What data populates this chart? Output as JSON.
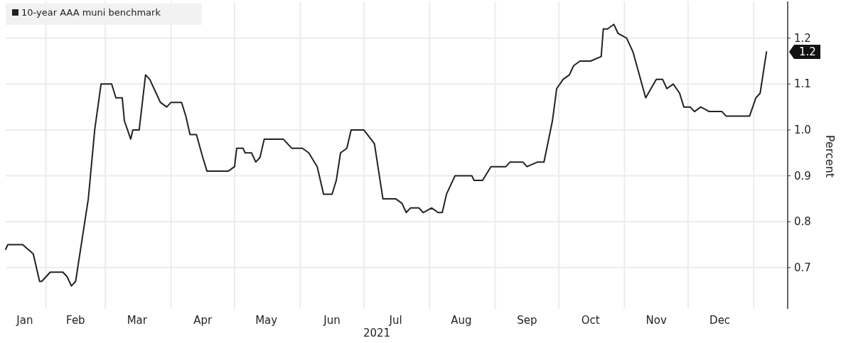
{
  "chart_data": {
    "type": "line",
    "xlabel": "2021",
    "ylabel": "Percent",
    "legend": "top left",
    "grid": true,
    "xlim": [
      "2021-01-13",
      "2022-01-17"
    ],
    "xticks": [
      {
        "value": "2021-01-22",
        "label": "Jan"
      },
      {
        "value": "2021-02-15",
        "label": "Feb"
      },
      {
        "value": "2021-03-16",
        "label": "Mar"
      },
      {
        "value": "2021-04-16",
        "label": "Apr"
      },
      {
        "value": "2021-05-16",
        "label": "May"
      },
      {
        "value": "2021-06-16",
        "label": "Jun"
      },
      {
        "value": "2021-07-16",
        "label": "Jul"
      },
      {
        "value": "2021-08-16",
        "label": "Aug"
      },
      {
        "value": "2021-09-16",
        "label": "Sep"
      },
      {
        "value": "2021-10-16",
        "label": "Oct"
      },
      {
        "value": "2021-11-16",
        "label": "Nov"
      },
      {
        "value": "2021-12-16",
        "label": "Dec"
      },
      {
        "value": "2021-02-01",
        "label": null
      },
      {
        "value": "2021-03-01",
        "label": null
      },
      {
        "value": "2021-04-01",
        "label": null
      },
      {
        "value": "2021-05-01",
        "label": null
      },
      {
        "value": "2021-06-01",
        "label": null
      },
      {
        "value": "2021-07-01",
        "label": null
      },
      {
        "value": "2021-08-01",
        "label": null
      },
      {
        "value": "2021-09-01",
        "label": null
      },
      {
        "value": "2021-10-01",
        "label": null
      },
      {
        "value": "2021-11-01",
        "label": null
      },
      {
        "value": "2021-12-01",
        "label": null
      },
      {
        "value": "2022-01-01",
        "label": null
      }
    ],
    "ylim": [
      0.61,
      1.28
    ],
    "yticks": [
      0.7,
      0.8,
      0.9,
      "1.0",
      1.1,
      1.2
    ],
    "annotations": [
      "1.2"
    ],
    "series": [
      {
        "name": "10-year AAA muni benchmark",
        "color": "#222222",
        "x": [
          "2021-01-13",
          "2021-01-14",
          "2021-01-21",
          "2021-01-26",
          "2021-01-29",
          "2021-01-30",
          "2021-02-01",
          "2021-02-03",
          "2021-02-09",
          "2021-02-11",
          "2021-02-13",
          "2021-02-15",
          "2021-02-17",
          "2021-02-21",
          "2021-02-24",
          "2021-02-27",
          "2021-03-04",
          "2021-03-06",
          "2021-03-09",
          "2021-03-10",
          "2021-03-13",
          "2021-03-14",
          "2021-03-17",
          "2021-03-20",
          "2021-03-22",
          "2021-03-25",
          "2021-03-27",
          "2021-03-30",
          "2021-04-01",
          "2021-04-03",
          "2021-04-06",
          "2021-04-08",
          "2021-04-10",
          "2021-04-13",
          "2021-04-16",
          "2021-04-18",
          "2021-04-28",
          "2021-05-01",
          "2021-05-02",
          "2021-05-05",
          "2021-05-06",
          "2021-05-09",
          "2021-05-11",
          "2021-05-13",
          "2021-05-15",
          "2021-05-24",
          "2021-05-28",
          "2021-06-02",
          "2021-06-05",
          "2021-06-09",
          "2021-06-12",
          "2021-06-16",
          "2021-06-18",
          "2021-06-20",
          "2021-06-23",
          "2021-06-25",
          "2021-06-28",
          "2021-07-01",
          "2021-07-06",
          "2021-07-10",
          "2021-07-13",
          "2021-07-16",
          "2021-07-19",
          "2021-07-21",
          "2021-07-23",
          "2021-07-27",
          "2021-07-29",
          "2021-08-02",
          "2021-08-05",
          "2021-08-07",
          "2021-08-09",
          "2021-08-13",
          "2021-08-21",
          "2021-08-22",
          "2021-08-26",
          "2021-08-30",
          "2021-09-06",
          "2021-09-08",
          "2021-09-14",
          "2021-09-16",
          "2021-09-21",
          "2021-09-24",
          "2021-09-28",
          "2021-09-30",
          "2021-10-03",
          "2021-10-06",
          "2021-10-08",
          "2021-10-11",
          "2021-10-14",
          "2021-10-16",
          "2021-10-21",
          "2021-10-22",
          "2021-10-24",
          "2021-10-27",
          "2021-10-29",
          "2021-11-02",
          "2021-11-05",
          "2021-11-08",
          "2021-11-11",
          "2021-11-16",
          "2021-11-19",
          "2021-11-21",
          "2021-11-24",
          "2021-11-27",
          "2021-11-29",
          "2021-12-02",
          "2021-12-04",
          "2021-12-07",
          "2021-12-11",
          "2021-12-17",
          "2021-12-19",
          "2021-12-30",
          "2022-01-02",
          "2022-01-04",
          "2022-01-07"
        ],
        "values": [
          0.74,
          0.75,
          0.75,
          0.73,
          0.67,
          0.67,
          0.68,
          0.69,
          0.69,
          0.68,
          0.66,
          0.67,
          0.73,
          0.85,
          1.0,
          1.1,
          1.1,
          1.07,
          1.07,
          1.02,
          0.98,
          1.0,
          1.0,
          1.12,
          1.11,
          1.08,
          1.06,
          1.05,
          1.06,
          1.06,
          1.06,
          1.03,
          0.99,
          0.99,
          0.94,
          0.91,
          0.91,
          0.92,
          0.96,
          0.96,
          0.95,
          0.95,
          0.93,
          0.94,
          0.98,
          0.98,
          0.96,
          0.96,
          0.95,
          0.92,
          0.86,
          0.86,
          0.89,
          0.95,
          0.96,
          1.0,
          1.0,
          1.0,
          0.97,
          0.85,
          0.85,
          0.85,
          0.84,
          0.82,
          0.83,
          0.83,
          0.82,
          0.83,
          0.82,
          0.82,
          0.86,
          0.9,
          0.9,
          0.89,
          0.89,
          0.92,
          0.92,
          0.93,
          0.93,
          0.92,
          0.93,
          0.93,
          1.02,
          1.09,
          1.11,
          1.12,
          1.14,
          1.15,
          1.15,
          1.15,
          1.16,
          1.22,
          1.22,
          1.23,
          1.21,
          1.2,
          1.17,
          1.12,
          1.07,
          1.11,
          1.11,
          1.09,
          1.1,
          1.08,
          1.05,
          1.05,
          1.04,
          1.05,
          1.04,
          1.04,
          1.03,
          1.03,
          1.07,
          1.08,
          1.17
        ]
      }
    ]
  }
}
